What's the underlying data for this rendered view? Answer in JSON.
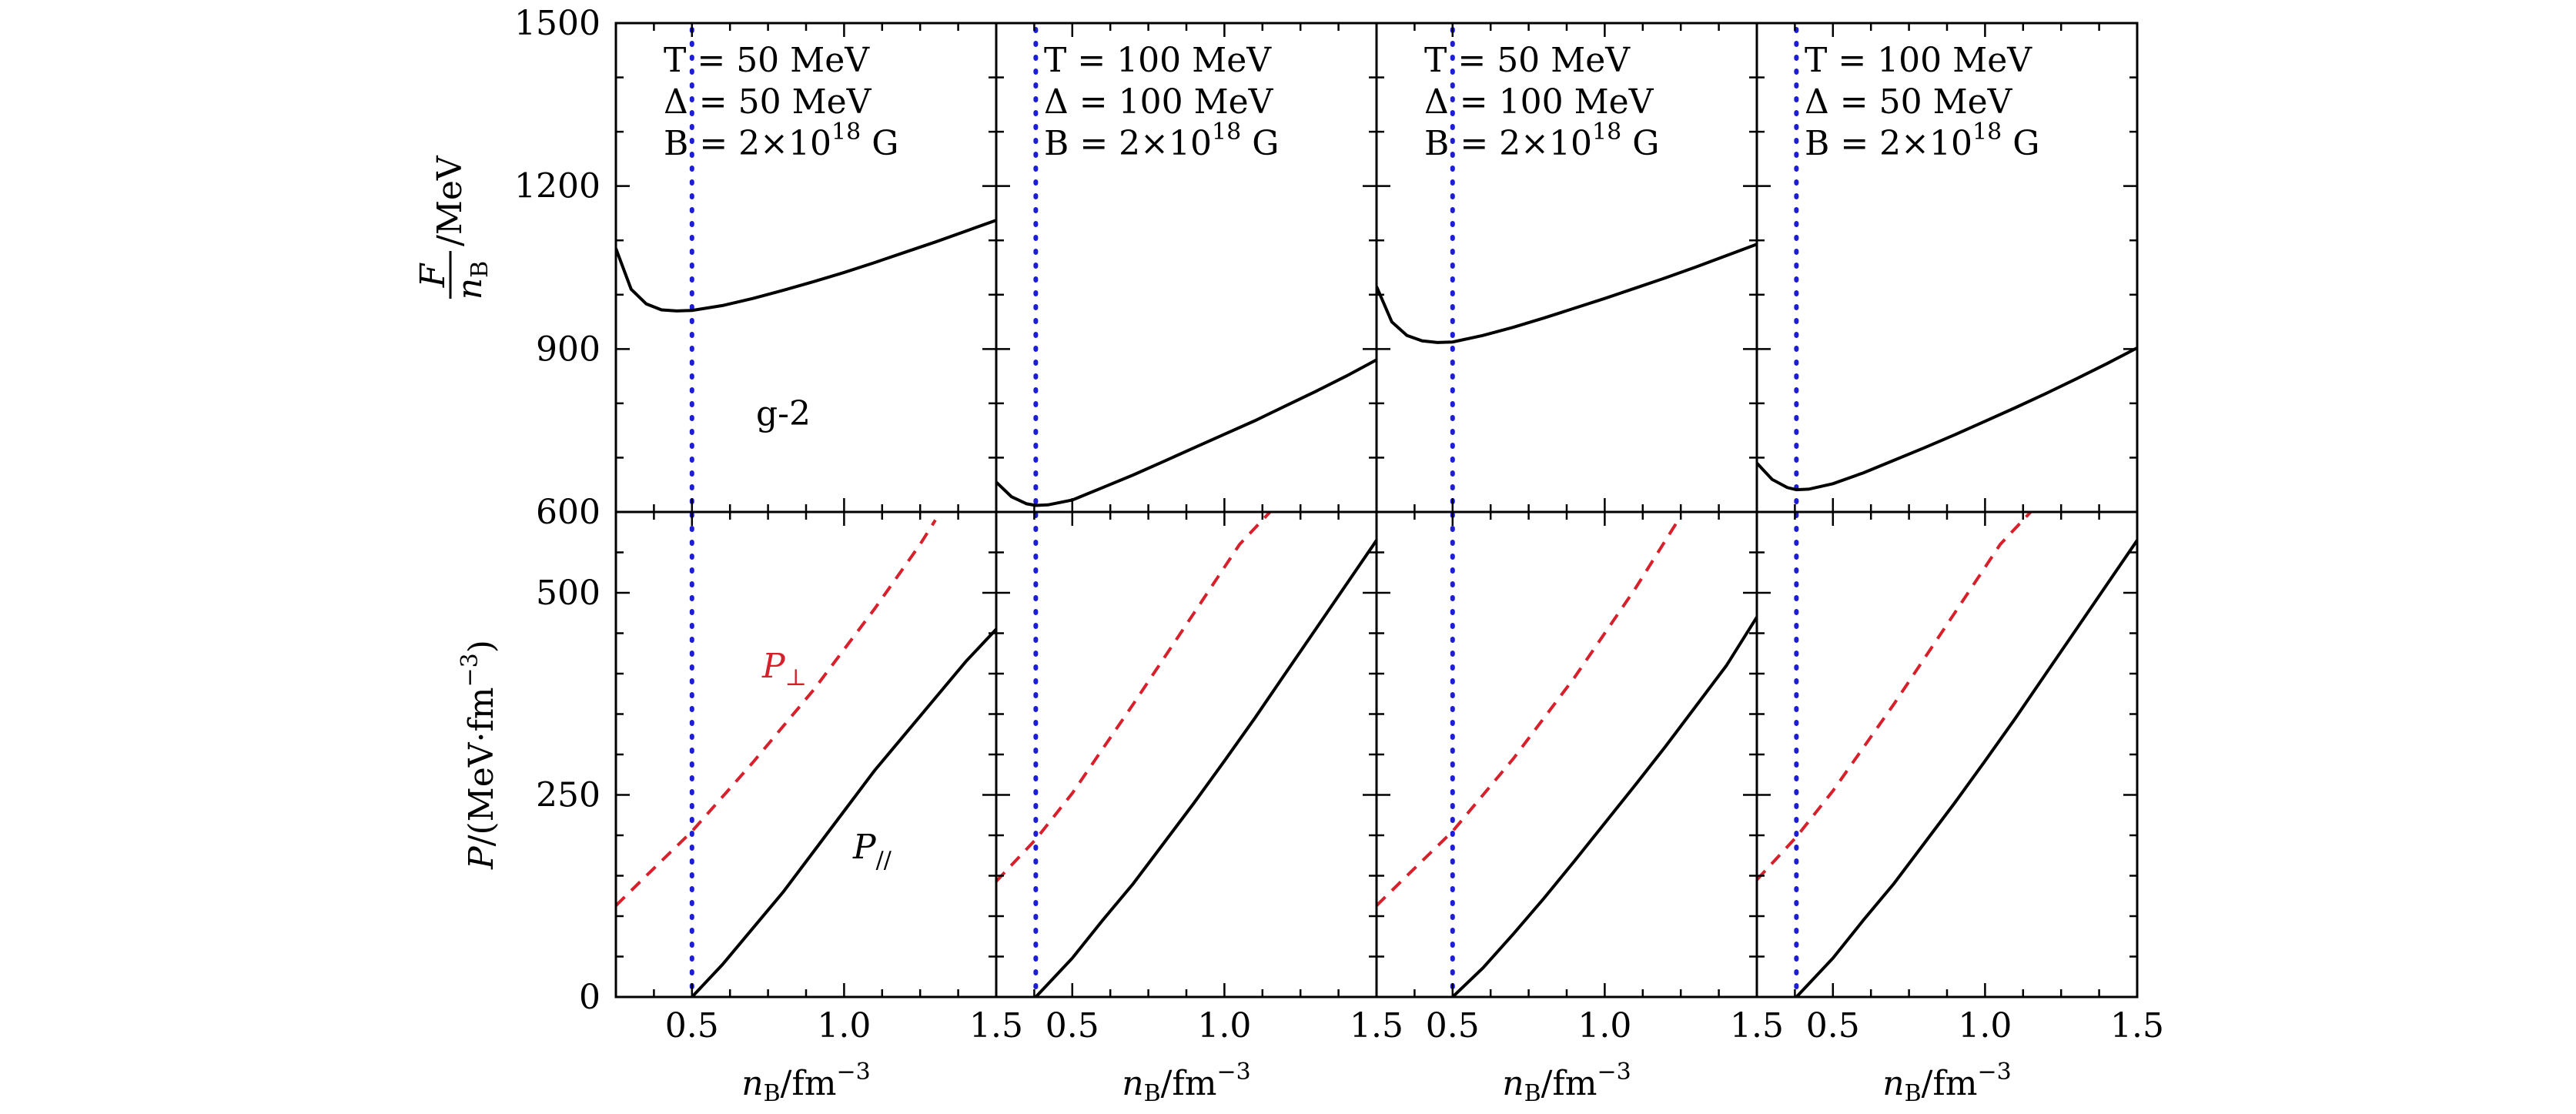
{
  "chart_data": {
    "type": "line",
    "layout": "2 rows x 4 columns, shared x axis",
    "x": {
      "label_base": "n",
      "label_sub": "B",
      "label_unit": "/fm",
      "label_exp": "−3",
      "range": [
        0.25,
        1.5
      ],
      "ticks": [
        0.5,
        1.0,
        1.5
      ],
      "tick_labels": [
        "0.5",
        "1.0",
        "1.5"
      ]
    },
    "top_y": {
      "label_num": "F",
      "label_den_base": "n",
      "label_den_sub": "B",
      "label_unit": "/MeV",
      "range": [
        600,
        1500
      ],
      "ticks": [
        600,
        900,
        1200,
        1500
      ],
      "tick_labels": [
        "600",
        "900",
        "1200",
        "1500"
      ]
    },
    "bottom_y": {
      "label_prefix": "P",
      "label_unit": "/(MeV·fm",
      "label_exp": "−3",
      "label_close": ")",
      "range": [
        0,
        600
      ],
      "ticks": [
        0,
        250,
        500
      ],
      "tick_labels": [
        "0",
        "250",
        "500"
      ]
    },
    "panel_label": "g-2",
    "curve_labels": {
      "perp_base": "P",
      "perp_sub": "⊥",
      "par_base": "P",
      "par_sub": "//"
    },
    "colors": {
      "F": "#000000",
      "P_par": "#000000",
      "P_perp": "#d6202b",
      "vline": "#1d1dd6"
    },
    "panels": [
      {
        "T": "T = 50 MeV",
        "Delta": "Δ = 50 MeV",
        "B": "B = 2×10",
        "B_exp": "18",
        "B_unit": " G",
        "vline_x": 0.5,
        "F": [
          [
            0.25,
            1085
          ],
          [
            0.3,
            1010
          ],
          [
            0.35,
            983
          ],
          [
            0.4,
            972
          ],
          [
            0.45,
            970
          ],
          [
            0.5,
            971
          ],
          [
            0.6,
            980
          ],
          [
            0.7,
            993
          ],
          [
            0.8,
            1008
          ],
          [
            0.9,
            1024
          ],
          [
            1.0,
            1041
          ],
          [
            1.1,
            1059
          ],
          [
            1.2,
            1078
          ],
          [
            1.3,
            1097
          ],
          [
            1.4,
            1117
          ],
          [
            1.5,
            1137
          ]
        ],
        "P_perp": [
          [
            0.25,
            113
          ],
          [
            0.35,
            150
          ],
          [
            0.5,
            205
          ],
          [
            0.7,
            290
          ],
          [
            0.9,
            380
          ],
          [
            1.1,
            480
          ],
          [
            1.25,
            560
          ],
          [
            1.3,
            590
          ]
        ],
        "P_par": [
          [
            0.5,
            0
          ],
          [
            0.6,
            40
          ],
          [
            0.7,
            85
          ],
          [
            0.8,
            130
          ],
          [
            0.9,
            180
          ],
          [
            1.0,
            230
          ],
          [
            1.1,
            280
          ],
          [
            1.2,
            325
          ],
          [
            1.3,
            370
          ],
          [
            1.4,
            415
          ],
          [
            1.5,
            455
          ]
        ]
      },
      {
        "T": "T = 100 MeV",
        "Delta": "Δ = 100 MeV",
        "B": "B = 2×10",
        "B_exp": "18",
        "B_unit": " G",
        "vline_x": 0.38,
        "F": [
          [
            0.25,
            655
          ],
          [
            0.3,
            628
          ],
          [
            0.35,
            615
          ],
          [
            0.38,
            612
          ],
          [
            0.42,
            613
          ],
          [
            0.5,
            622
          ],
          [
            0.6,
            645
          ],
          [
            0.7,
            668
          ],
          [
            0.8,
            693
          ],
          [
            0.9,
            718
          ],
          [
            1.0,
            743
          ],
          [
            1.1,
            768
          ],
          [
            1.2,
            795
          ],
          [
            1.3,
            822
          ],
          [
            1.4,
            850
          ],
          [
            1.5,
            880
          ]
        ],
        "P_perp": [
          [
            0.25,
            143
          ],
          [
            0.38,
            195
          ],
          [
            0.5,
            252
          ],
          [
            0.7,
            362
          ],
          [
            0.9,
            475
          ],
          [
            1.05,
            560
          ],
          [
            1.15,
            600
          ]
        ],
        "P_par": [
          [
            0.38,
            0
          ],
          [
            0.5,
            48
          ],
          [
            0.6,
            95
          ],
          [
            0.7,
            140
          ],
          [
            0.8,
            190
          ],
          [
            0.9,
            240
          ],
          [
            1.0,
            292
          ],
          [
            1.1,
            345
          ],
          [
            1.2,
            400
          ],
          [
            1.3,
            455
          ],
          [
            1.4,
            510
          ],
          [
            1.5,
            565
          ]
        ]
      },
      {
        "T": "T = 50 MeV",
        "Delta": "Δ = 100 MeV",
        "B": "B = 2×10",
        "B_exp": "18",
        "B_unit": " G",
        "vline_x": 0.5,
        "F": [
          [
            0.25,
            1015
          ],
          [
            0.3,
            950
          ],
          [
            0.35,
            925
          ],
          [
            0.4,
            915
          ],
          [
            0.45,
            912
          ],
          [
            0.5,
            913
          ],
          [
            0.6,
            925
          ],
          [
            0.7,
            940
          ],
          [
            0.8,
            957
          ],
          [
            0.9,
            975
          ],
          [
            1.0,
            993
          ],
          [
            1.1,
            1012
          ],
          [
            1.2,
            1031
          ],
          [
            1.3,
            1051
          ],
          [
            1.4,
            1072
          ],
          [
            1.5,
            1093
          ]
        ],
        "P_perp": [
          [
            0.25,
            113
          ],
          [
            0.35,
            150
          ],
          [
            0.5,
            205
          ],
          [
            0.7,
            295
          ],
          [
            0.9,
            395
          ],
          [
            1.1,
            505
          ],
          [
            1.2,
            565
          ],
          [
            1.25,
            595
          ]
        ],
        "P_par": [
          [
            0.5,
            0
          ],
          [
            0.6,
            36
          ],
          [
            0.7,
            78
          ],
          [
            0.8,
            122
          ],
          [
            0.9,
            168
          ],
          [
            1.0,
            215
          ],
          [
            1.1,
            262
          ],
          [
            1.2,
            310
          ],
          [
            1.3,
            360
          ],
          [
            1.4,
            410
          ],
          [
            1.5,
            470
          ]
        ]
      },
      {
        "T": "T = 100 MeV",
        "Delta": "Δ = 50 MeV",
        "B": "B = 2×10",
        "B_exp": "18",
        "B_unit": " G",
        "vline_x": 0.38,
        "F": [
          [
            0.25,
            690
          ],
          [
            0.3,
            660
          ],
          [
            0.35,
            645
          ],
          [
            0.38,
            641
          ],
          [
            0.42,
            642
          ],
          [
            0.5,
            652
          ],
          [
            0.6,
            672
          ],
          [
            0.7,
            695
          ],
          [
            0.8,
            718
          ],
          [
            0.9,
            742
          ],
          [
            1.0,
            767
          ],
          [
            1.1,
            792
          ],
          [
            1.2,
            818
          ],
          [
            1.3,
            845
          ],
          [
            1.4,
            873
          ],
          [
            1.5,
            902
          ]
        ],
        "P_perp": [
          [
            0.25,
            145
          ],
          [
            0.38,
            198
          ],
          [
            0.5,
            255
          ],
          [
            0.7,
            362
          ],
          [
            0.9,
            475
          ],
          [
            1.05,
            560
          ],
          [
            1.15,
            600
          ]
        ],
        "P_par": [
          [
            0.38,
            0
          ],
          [
            0.5,
            48
          ],
          [
            0.6,
            95
          ],
          [
            0.7,
            140
          ],
          [
            0.8,
            190
          ],
          [
            0.9,
            240
          ],
          [
            1.0,
            292
          ],
          [
            1.1,
            345
          ],
          [
            1.2,
            400
          ],
          [
            1.3,
            455
          ],
          [
            1.4,
            510
          ],
          [
            1.5,
            565
          ]
        ]
      }
    ]
  }
}
